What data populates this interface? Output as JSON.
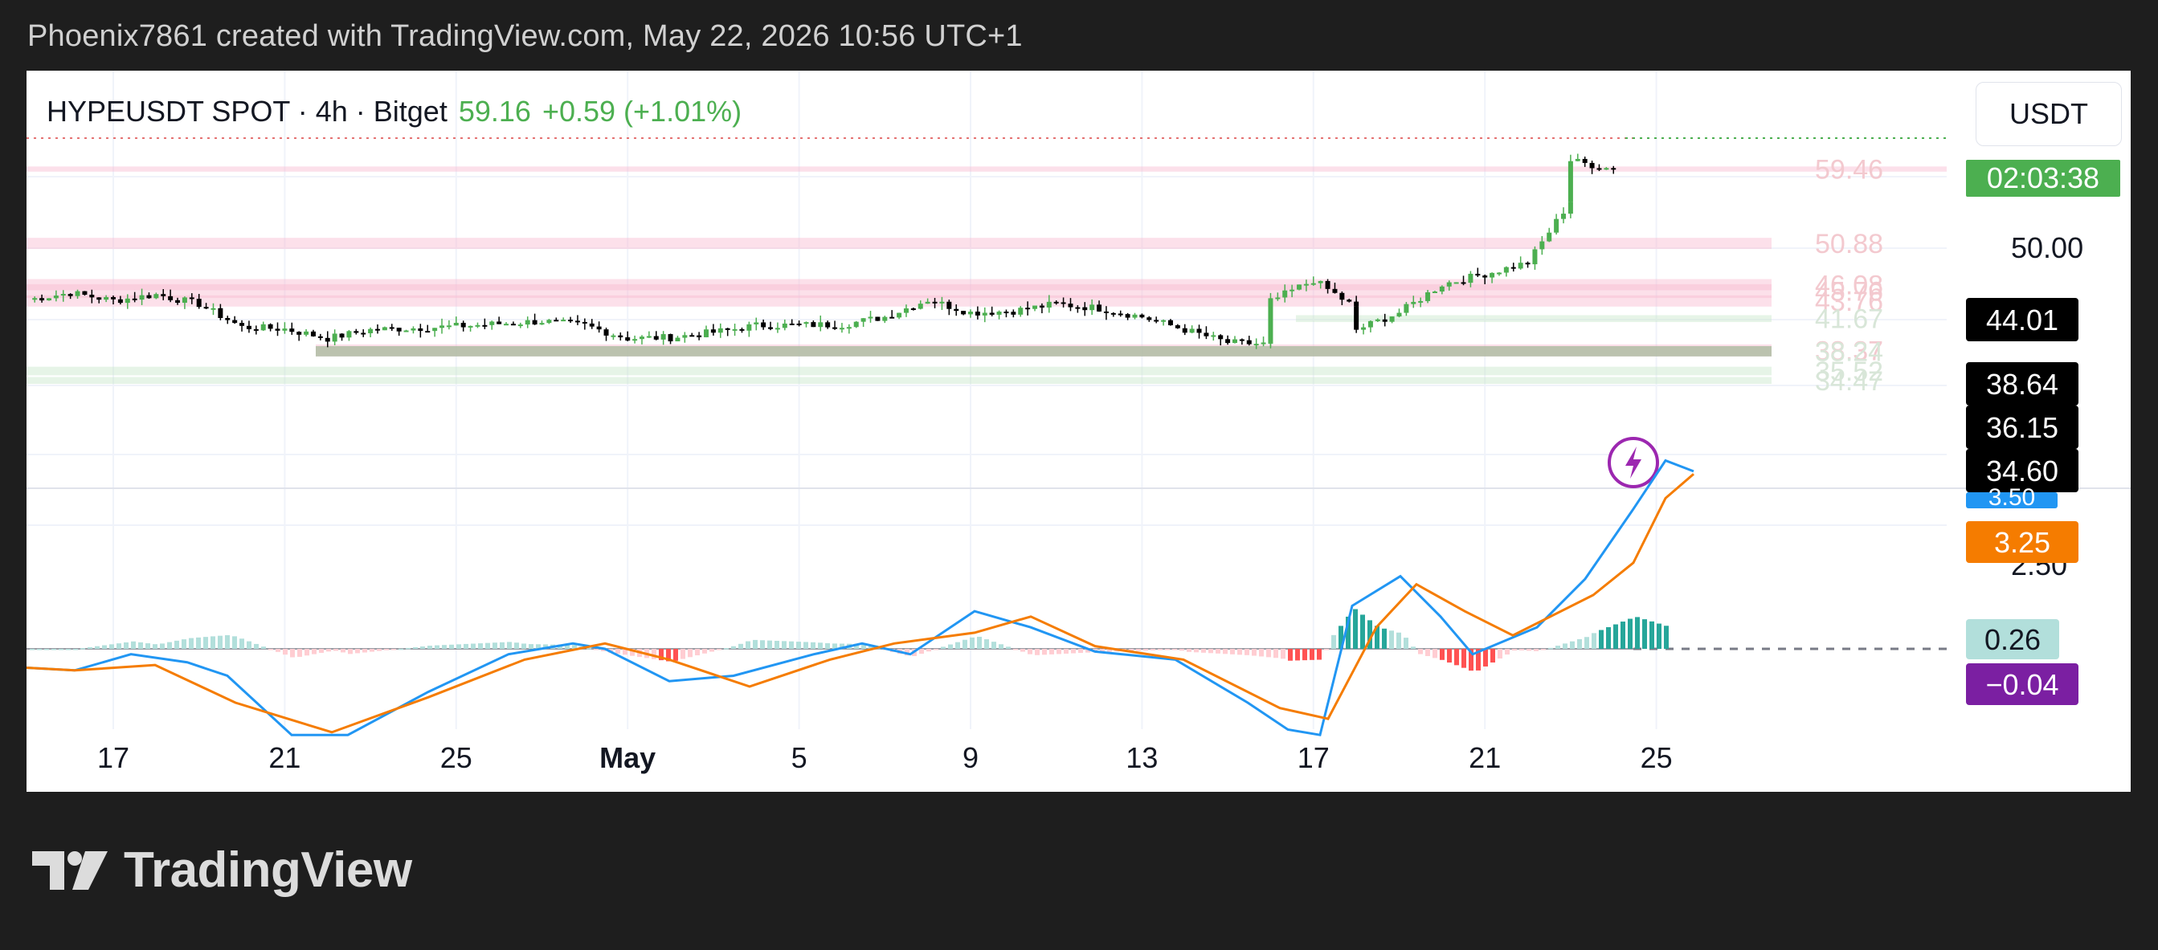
{
  "header": {
    "credit": "Phoenix7861 created with TradingView.com, May 22, 2026 10:56 UTC+1"
  },
  "legend": {
    "symbol": "HYPEUSDT SPOT · 4h · Bitget",
    "last": "59.16",
    "change": "+0.59 (+1.01%)"
  },
  "currency": "USDT",
  "countdown": "02:03:38",
  "brand": {
    "name": "TradingView"
  },
  "colors": {
    "up": "#4caf50",
    "down": "#000000",
    "macd_line": "#2196f3",
    "signal_line": "#f57c00",
    "resistance_zone": "#f8bbd0",
    "support_zone": "#c8e6c9",
    "countdown_bg": "#4caf50",
    "hist_label_bg": "#b2dfdb",
    "neg_label_bg": "#7b1fa2"
  },
  "chart_data": {
    "type": "candlestick",
    "timeframe": "4h",
    "x_ticks": [
      "17",
      "21",
      "25",
      "May",
      "5",
      "9",
      "13",
      "17",
      "21",
      "25"
    ],
    "price_axis_ticks": [
      "50.00"
    ],
    "close_path": [
      {
        "date": "Apr 15",
        "close": 44.0
      },
      {
        "date": "Apr 16",
        "close": 44.8
      },
      {
        "date": "Apr 17",
        "close": 43.9
      },
      {
        "date": "Apr 18",
        "close": 44.6
      },
      {
        "date": "Apr 19",
        "close": 43.5
      },
      {
        "date": "Apr 20",
        "close": 40.8
      },
      {
        "date": "Apr 21",
        "close": 40.6
      },
      {
        "date": "Apr 22",
        "close": 39.5
      },
      {
        "date": "Apr 23",
        "close": 40.5
      },
      {
        "date": "Apr 25",
        "close": 40.9
      },
      {
        "date": "Apr 27",
        "close": 41.5
      },
      {
        "date": "Apr 28",
        "close": 41.0
      },
      {
        "date": "Apr 29",
        "close": 39.5
      },
      {
        "date": "Apr 30",
        "close": 39.6
      },
      {
        "date": "May 1",
        "close": 40.2
      },
      {
        "date": "May 2",
        "close": 41.0
      },
      {
        "date": "May 4",
        "close": 41.1
      },
      {
        "date": "May 5",
        "close": 42.0
      },
      {
        "date": "May 6",
        "close": 44.0
      },
      {
        "date": "May 7",
        "close": 42.5
      },
      {
        "date": "May 8",
        "close": 42.7
      },
      {
        "date": "May 9",
        "close": 43.5
      },
      {
        "date": "May 10",
        "close": 43.0
      },
      {
        "date": "May 11",
        "close": 42.0
      },
      {
        "date": "May 12",
        "close": 40.5
      },
      {
        "date": "May 13",
        "close": 39.0
      },
      {
        "date": "May 14",
        "close": 38.8
      },
      {
        "date": "May 14",
        "close": 43.8
      },
      {
        "date": "May 15",
        "close": 46.3
      },
      {
        "date": "May 16",
        "close": 43.0
      },
      {
        "date": "May 16",
        "close": 40.5
      },
      {
        "date": "May 17",
        "close": 42.5
      },
      {
        "date": "May 18",
        "close": 45.8
      },
      {
        "date": "May 19",
        "close": 47.0
      },
      {
        "date": "May 20",
        "close": 48.3
      },
      {
        "date": "May 21",
        "close": 55.5
      },
      {
        "date": "May 21",
        "close": 60.2
      },
      {
        "date": "May 22",
        "close": 59.16
      }
    ],
    "resistance_zones": [
      {
        "low": 58.9,
        "high": 59.5,
        "label": "59.46"
      },
      {
        "low": 49.9,
        "high": 51.2,
        "label": "50.88"
      },
      {
        "low": 45.1,
        "high": 46.4,
        "label": "46.08"
      },
      {
        "low": 44.2,
        "high": 45.8,
        "label": "45.76"
      },
      {
        "low": 43.2,
        "high": 44.5,
        "label": "43.76"
      },
      {
        "low": 37.4,
        "high": 38.8,
        "label": "38.37"
      }
    ],
    "support_zones": [
      {
        "low": 41.4,
        "high": 42.2,
        "label": "41.67"
      },
      {
        "low": 37.4,
        "high": 38.6,
        "label": "38.24"
      },
      {
        "low": 35.2,
        "high": 36.2,
        "label": "35.52"
      },
      {
        "low": 34.2,
        "high": 35.0,
        "label": "34.47"
      }
    ],
    "price_badges": [
      "44.01",
      "38.64",
      "36.15",
      "34.60"
    ],
    "macd": {
      "axis_ticks": [
        "2.50"
      ],
      "macd_value": "3.50",
      "signal_value": "3.25",
      "histogram_value": "0.26",
      "other_value": "−0.04"
    }
  }
}
